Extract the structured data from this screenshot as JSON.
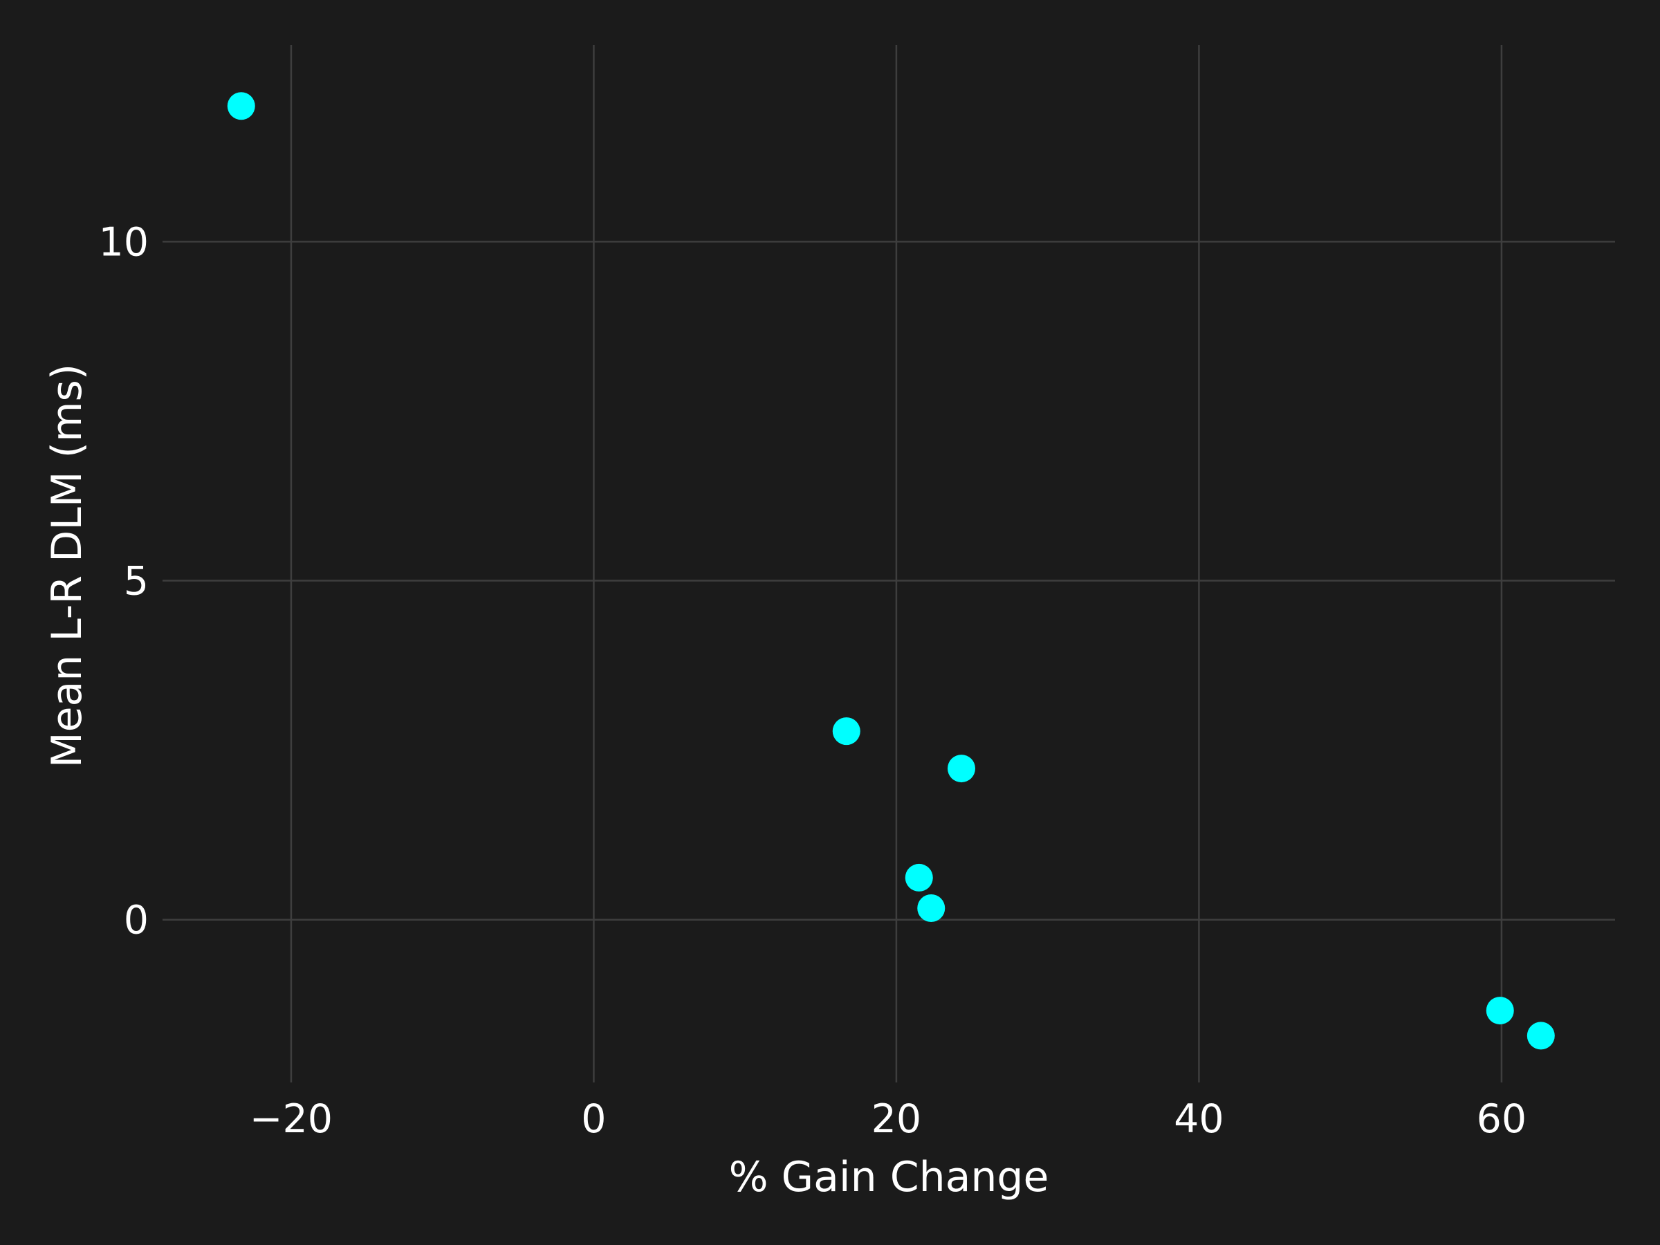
{
  "chart_data": {
    "type": "scatter",
    "title": "",
    "xlabel": "% Gain Change",
    "ylabel": "Mean L-R DLM (ms)",
    "xlim": [
      -28.5,
      67.5
    ],
    "ylim": [
      -2.4,
      12.9
    ],
    "xticks": [
      -20,
      0,
      20,
      40,
      60
    ],
    "yticks": [
      0,
      5,
      10
    ],
    "xtick_labels": [
      "−20",
      "0",
      "20",
      "40",
      "60"
    ],
    "ytick_labels": [
      "0",
      "5",
      "10"
    ],
    "grid": true,
    "legend": "none",
    "colors": {
      "background": "#1b1b1b",
      "grid": "#3e3e3e",
      "text": "#ffffff",
      "point": "#00ffff"
    },
    "series": [
      {
        "points": [
          {
            "x": -23.3,
            "y": 12.0
          },
          {
            "x": 16.7,
            "y": 2.78
          },
          {
            "x": 24.3,
            "y": 2.23
          },
          {
            "x": 21.5,
            "y": 0.62
          },
          {
            "x": 22.3,
            "y": 0.17
          },
          {
            "x": 59.9,
            "y": -1.34
          },
          {
            "x": 62.6,
            "y": -1.71
          }
        ]
      }
    ]
  }
}
